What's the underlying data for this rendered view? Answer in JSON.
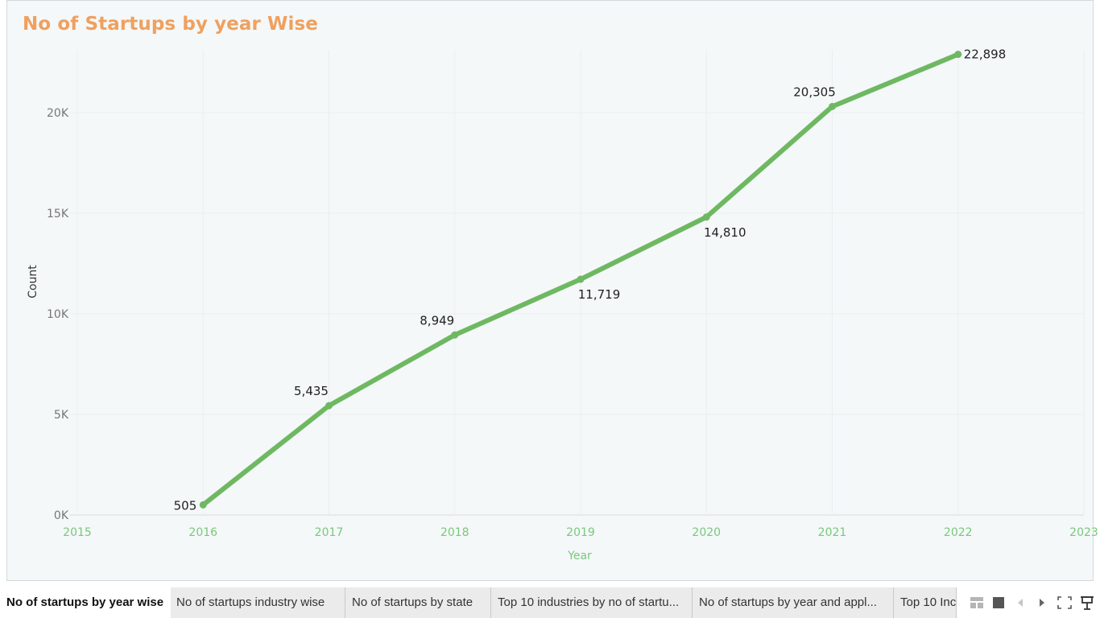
{
  "title": "No of Startups by year Wise",
  "chart_data": {
    "type": "line",
    "title": "No of Startups by year Wise",
    "xlabel": "Year",
    "ylabel": "Count",
    "x": [
      2016,
      2017,
      2018,
      2019,
      2020,
      2021,
      2022
    ],
    "values": [
      505,
      5435,
      8949,
      11719,
      14810,
      20305,
      22898
    ],
    "data_labels": [
      "505",
      "5,435",
      "8,949",
      "11,719",
      "14,810",
      "20,305",
      "22,898"
    ],
    "x_ticks": [
      "2015",
      "2016",
      "2017",
      "2018",
      "2019",
      "2020",
      "2021",
      "2022",
      "2023"
    ],
    "y_ticks": [
      "0K",
      "5K",
      "10K",
      "15K",
      "20K"
    ],
    "xlim": [
      2015,
      2023
    ],
    "ylim": [
      0,
      24000
    ],
    "grid": true,
    "line_color": "#6fb862",
    "title_color": "#f0a05e",
    "x_tick_color": "#7bc77b"
  },
  "tabs": [
    {
      "label": "No of startups by year wise",
      "active": true
    },
    {
      "label": "No of startups industry wise",
      "active": false
    },
    {
      "label": "No of startups by state",
      "active": false
    },
    {
      "label": "Top 10 industries by no of startu...",
      "active": false
    },
    {
      "label": "No of startups by  year and appl...",
      "active": false
    },
    {
      "label": "Top 10 Inc",
      "active": false
    }
  ],
  "tab_controls": [
    "grid-view-icon",
    "single-view-icon",
    "prev-arrow-icon",
    "next-arrow-icon",
    "fullscreen-icon",
    "presentation-icon"
  ]
}
